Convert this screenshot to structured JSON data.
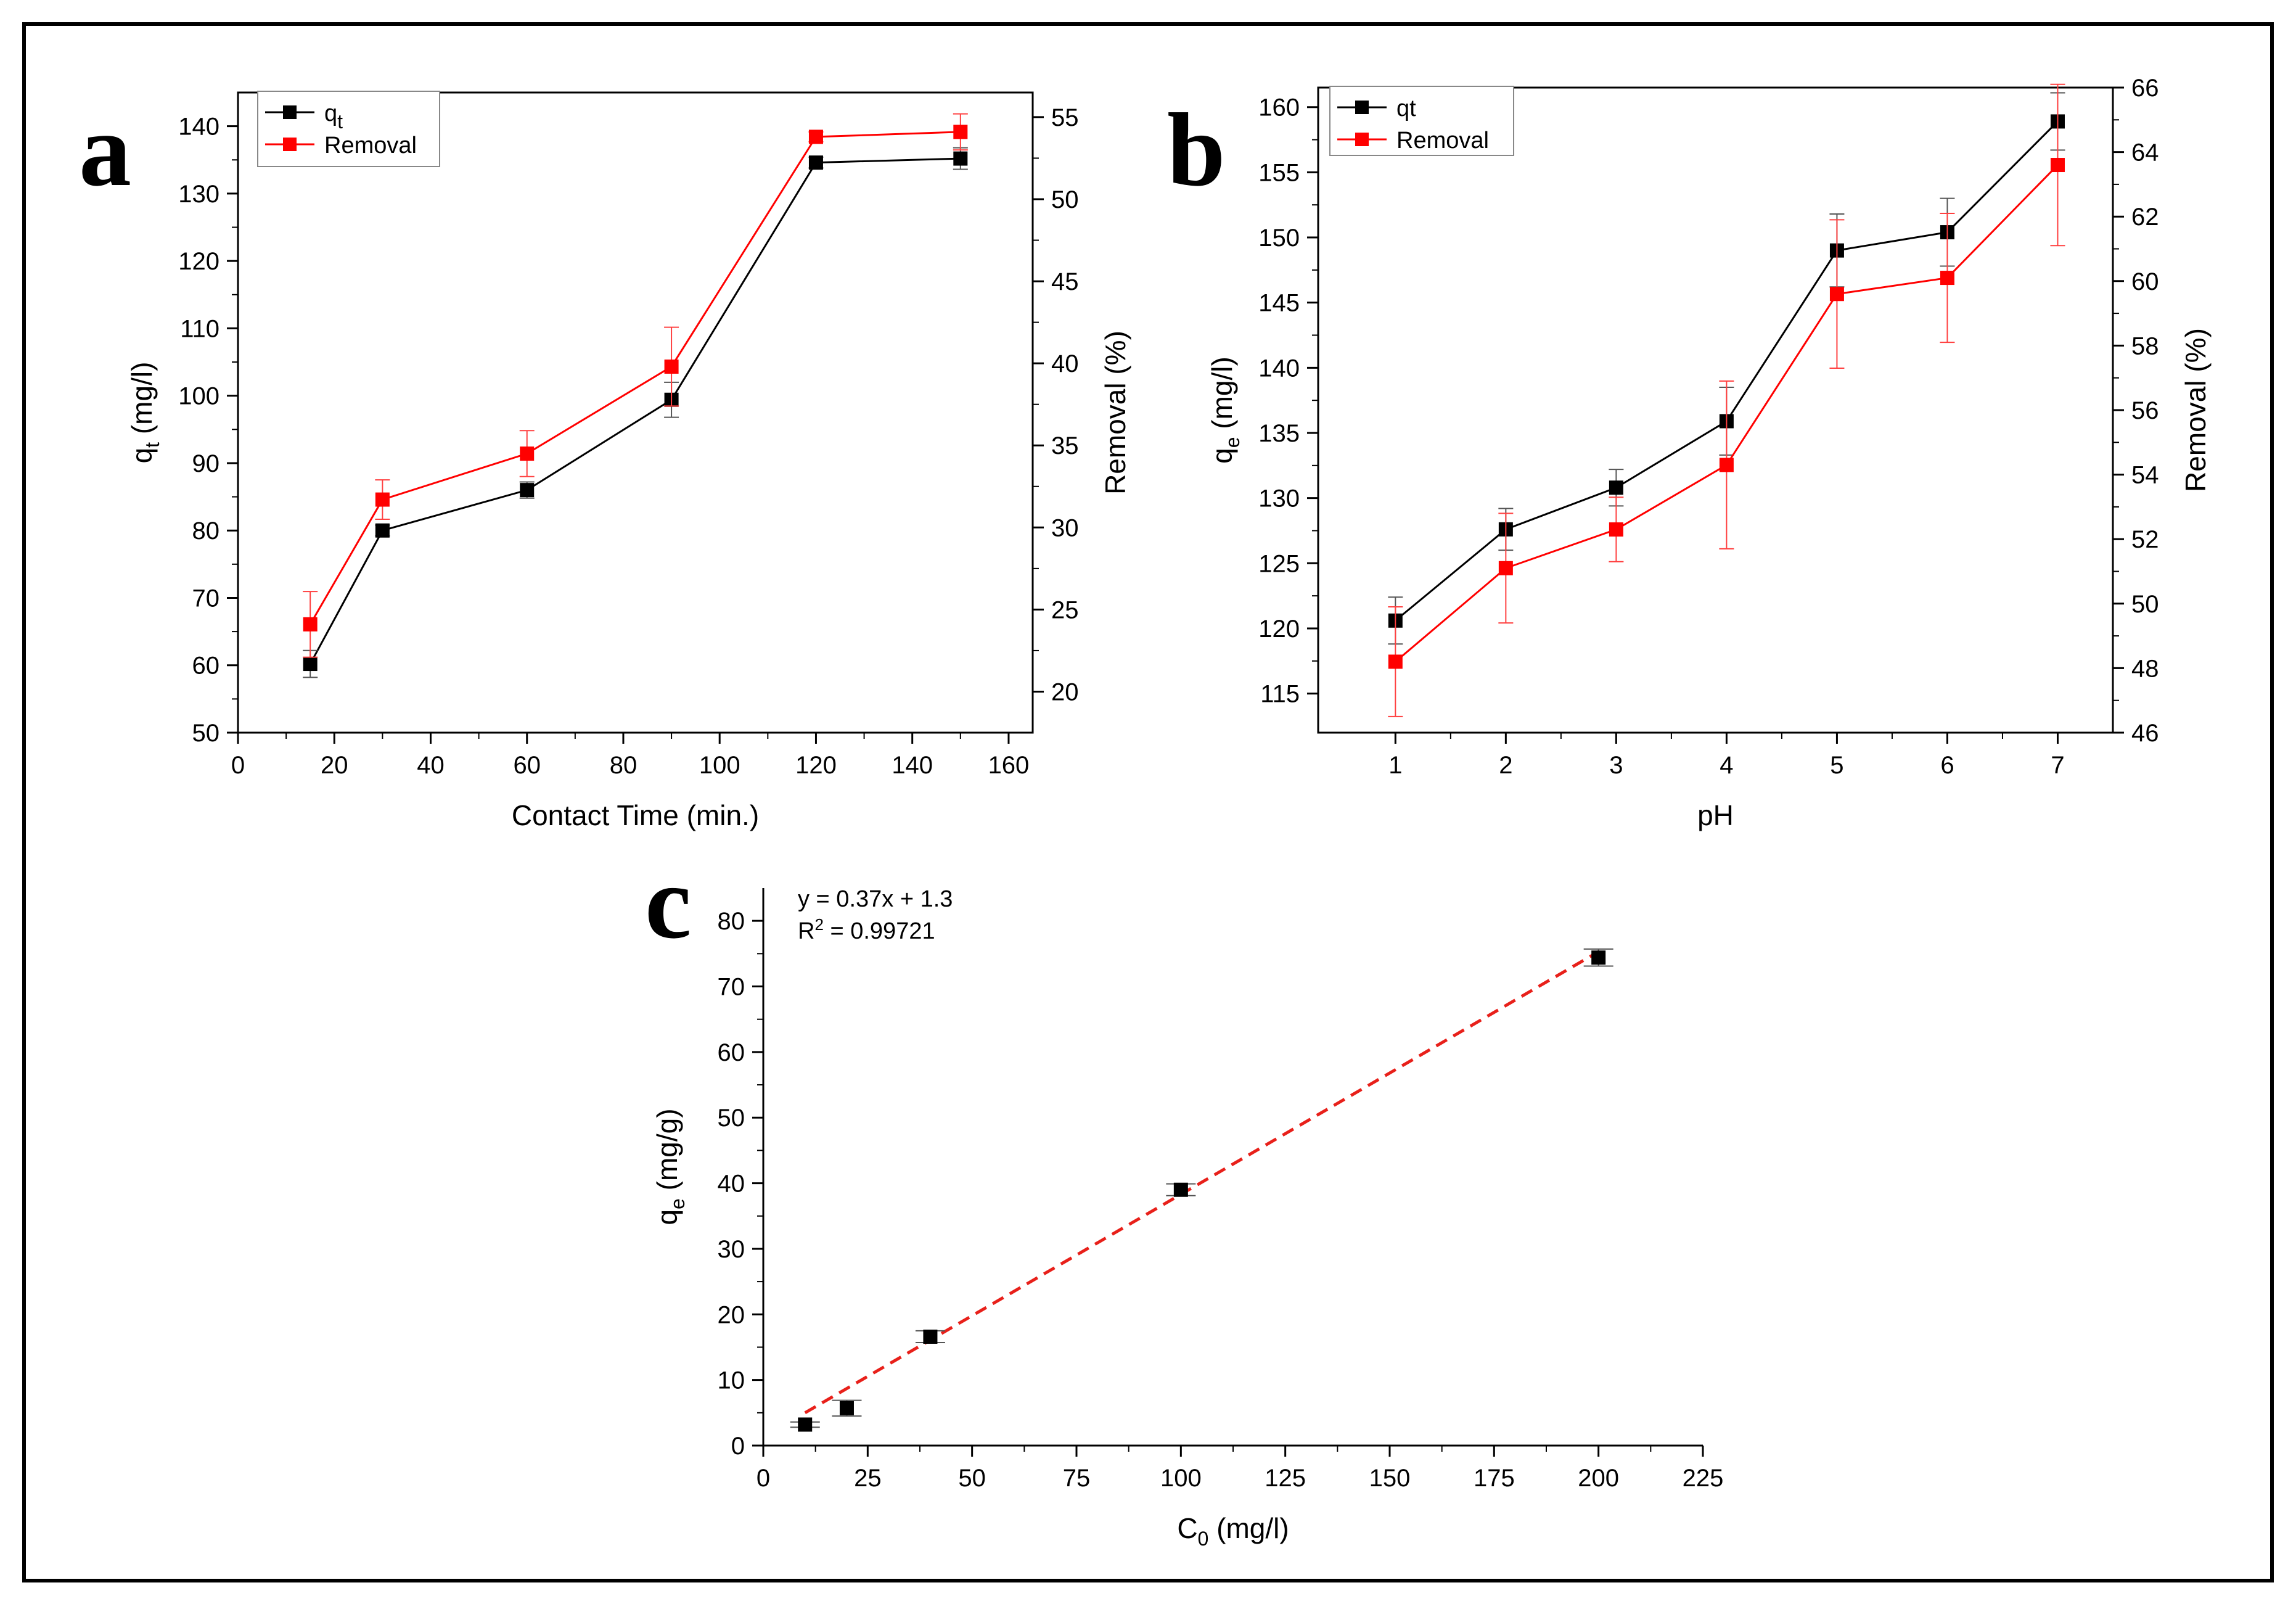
{
  "chart_data": [
    {
      "id": "a",
      "type": "line",
      "panel_label": "a",
      "xlabel": "Contact Time (min.)",
      "ylabel": "q",
      "ylabel_sub": "t",
      "ylabel_tail": " (mg/l)",
      "y2label": "Removal (%)",
      "xlim": [
        0,
        165
      ],
      "ylim": [
        50,
        145
      ],
      "y2lim": [
        17.5,
        56.5
      ],
      "xticks": [
        0,
        20,
        40,
        60,
        80,
        100,
        120,
        140,
        160
      ],
      "yticks": [
        50,
        60,
        70,
        80,
        90,
        100,
        110,
        120,
        130,
        140
      ],
      "y2ticks": [
        20,
        25,
        30,
        35,
        40,
        45,
        50,
        55
      ],
      "legend": {
        "position": "top-left",
        "entries": [
          {
            "label": "q",
            "sub": "t"
          },
          {
            "label": "Removal",
            "sub": ""
          }
        ]
      },
      "series": [
        {
          "name": "qt",
          "axis": "left",
          "color": "#000000",
          "x": [
            15,
            30,
            60,
            90,
            120,
            150
          ],
          "y": [
            60.2,
            80,
            86,
            99.4,
            134.6,
            135.2
          ],
          "err": [
            2,
            0.8,
            1.2,
            2.6,
            0.8,
            1.6
          ]
        },
        {
          "name": "Removal",
          "axis": "right",
          "color": "#ff0000",
          "x": [
            15,
            30,
            60,
            90,
            120,
            150
          ],
          "y": [
            24.1,
            31.7,
            34.5,
            39.8,
            53.8,
            54.1
          ],
          "err": [
            2,
            1.2,
            1.4,
            2.4,
            0.3,
            1.1
          ]
        }
      ]
    },
    {
      "id": "b",
      "type": "line",
      "panel_label": "b",
      "xlabel": "pH",
      "ylabel": "q",
      "ylabel_sub": "e",
      "ylabel_tail": " (mg/l)",
      "y2label": "Removal (%)",
      "xlim": [
        0.3,
        7.5
      ],
      "ylim": [
        112,
        161.5
      ],
      "y2lim": [
        46,
        66
      ],
      "xticks": [
        1,
        2,
        3,
        4,
        5,
        6,
        7
      ],
      "yticks": [
        115,
        120,
        125,
        130,
        135,
        140,
        145,
        150,
        155,
        160
      ],
      "y2ticks": [
        46,
        48,
        50,
        52,
        54,
        56,
        58,
        60,
        62,
        64,
        66
      ],
      "legend": {
        "position": "top-left",
        "entries": [
          {
            "label": "qt",
            "sub": ""
          },
          {
            "label": "Removal",
            "sub": ""
          }
        ]
      },
      "series": [
        {
          "name": "qt",
          "axis": "left",
          "color": "#000000",
          "x": [
            1,
            2,
            3,
            4,
            5,
            6,
            7
          ],
          "y": [
            120.6,
            127.6,
            130.8,
            135.9,
            149,
            150.4,
            158.9
          ],
          "err": [
            1.8,
            1.6,
            1.4,
            2.6,
            2.8,
            2.6,
            2.2
          ]
        },
        {
          "name": "Removal",
          "axis": "right",
          "color": "#ff0000",
          "x": [
            1,
            2,
            3,
            4,
            5,
            6,
            7
          ],
          "y": [
            48.2,
            51.1,
            52.3,
            54.3,
            59.6,
            60.1,
            63.6
          ],
          "err": [
            1.7,
            1.7,
            1,
            2.6,
            2.3,
            2,
            2.5
          ]
        }
      ]
    },
    {
      "id": "c",
      "type": "scatter",
      "panel_label": "c",
      "xlabel": "C",
      "xlabel_sub": "0",
      "xlabel_tail": " (mg/l)",
      "ylabel": "q",
      "ylabel_sub": "e",
      "ylabel_tail": " (mg/g)",
      "xlim": [
        0,
        225
      ],
      "ylim": [
        0,
        85
      ],
      "xticks": [
        0,
        25,
        50,
        75,
        100,
        125,
        150,
        175,
        200,
        225
      ],
      "yticks": [
        0,
        10,
        20,
        30,
        40,
        50,
        60,
        70,
        80
      ],
      "annotation": {
        "line1": "y   = 0.37x + 1.3",
        "r2_prefix": "R",
        "r2_sup": "2",
        "r2_value": " = 0.99721"
      },
      "fit": {
        "slope": 0.37,
        "intercept": 1.3,
        "x_range": [
          10,
          200
        ],
        "color": "#e8201a"
      },
      "series": [
        {
          "name": "qe",
          "color": "#000000",
          "x": [
            10,
            20,
            40,
            100,
            200
          ],
          "y": [
            3.2,
            5.7,
            16.6,
            39,
            74.4
          ],
          "err": [
            0.4,
            1.2,
            0.9,
            0.9,
            1.3
          ]
        }
      ]
    }
  ]
}
